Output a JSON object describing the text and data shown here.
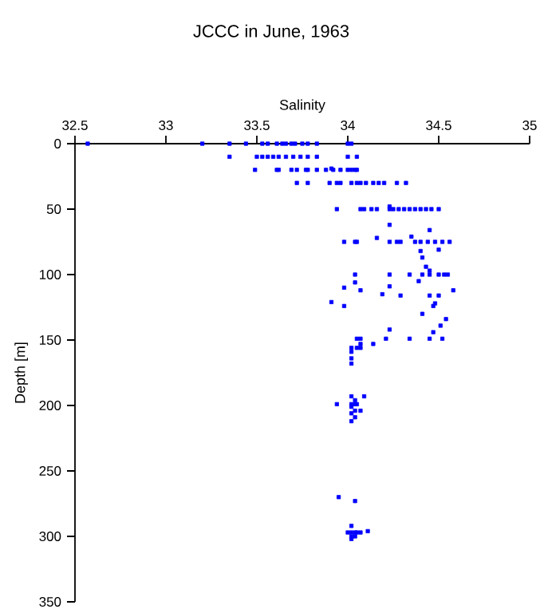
{
  "chart_data": {
    "type": "scatter",
    "title": "JCCC in June, 1963",
    "xlabel": "Salinity",
    "ylabel": "Depth [m]",
    "xlim": [
      32.5,
      35
    ],
    "xticks": [
      32.5,
      33,
      33.5,
      34,
      34.5,
      35
    ],
    "ylim": [
      350,
      0
    ],
    "yticks": [
      0,
      50,
      100,
      150,
      200,
      250,
      300,
      350
    ],
    "color": "#0000ff",
    "marker": "square",
    "x": [
      32.57,
      33.2,
      33.35,
      33.44,
      33.53,
      33.56,
      33.61,
      33.64,
      33.66,
      33.69,
      33.71,
      33.75,
      33.78,
      33.83,
      34.0,
      34.02,
      33.35,
      33.5,
      33.53,
      33.56,
      33.59,
      33.62,
      33.66,
      33.7,
      33.74,
      33.78,
      33.83,
      34.0,
      34.05,
      33.49,
      33.61,
      33.62,
      33.69,
      33.72,
      33.77,
      33.78,
      33.83,
      33.88,
      33.92,
      33.96,
      34.0,
      34.02,
      34.04,
      34.05,
      33.91,
      33.72,
      33.78,
      33.9,
      33.94,
      33.96,
      34.02,
      34.05,
      34.07,
      34.1,
      34.14,
      34.17,
      34.2,
      34.27,
      34.32,
      33.94,
      34.07,
      34.09,
      34.13,
      34.16,
      34.23,
      34.25,
      34.28,
      34.31,
      34.34,
      34.37,
      34.4,
      34.43,
      34.46,
      34.5,
      34.23,
      34.23,
      34.45,
      33.98,
      34.04,
      34.05,
      34.23,
      34.27,
      34.29,
      34.37,
      34.4,
      34.44,
      34.48,
      34.52,
      34.56,
      34.16,
      34.35,
      34.4,
      34.41,
      34.5,
      34.43,
      34.45,
      34.04,
      34.23,
      34.34,
      34.41,
      34.45,
      34.5,
      34.53,
      34.55,
      34.04,
      34.39,
      34.23,
      33.98,
      34.07,
      34.58,
      34.19,
      34.29,
      34.45,
      34.5,
      33.91,
      34.48,
      33.98,
      34.47,
      34.41,
      34.54,
      34.51,
      34.23,
      34.47,
      34.05,
      34.07,
      34.21,
      34.34,
      34.45,
      34.52,
      34.14,
      34.07,
      34.02,
      34.05,
      34.07,
      34.02,
      34.02,
      34.02,
      34.02,
      34.09,
      34.04,
      33.94,
      34.02,
      34.04,
      34.05,
      34.02,
      34.04,
      34.07,
      34.02,
      34.04,
      34.02,
      33.95,
      34.04,
      34.02,
      34.11,
      34.0,
      34.02,
      34.04,
      34.05,
      34.07,
      34.02,
      34.04,
      34.02
    ],
    "values": [
      0,
      0,
      0,
      0,
      0,
      0,
      0,
      0,
      0,
      0,
      0,
      0,
      0,
      0,
      0,
      0,
      10,
      10,
      10,
      10,
      10,
      10,
      10,
      10,
      10,
      10,
      10,
      10,
      10,
      20,
      20,
      20,
      20,
      20,
      20,
      20,
      20,
      20,
      20,
      20,
      20,
      20,
      20,
      20,
      19,
      30,
      30,
      30,
      30,
      30,
      30,
      30,
      30,
      30,
      30,
      30,
      30,
      30,
      30,
      50,
      50,
      50,
      50,
      50,
      50,
      50,
      50,
      50,
      50,
      50,
      50,
      50,
      50,
      50,
      48,
      62,
      66,
      75,
      75,
      75,
      75,
      75,
      75,
      75,
      75,
      75,
      75,
      75,
      75,
      72,
      71,
      82,
      87,
      81,
      94,
      97,
      100,
      100,
      100,
      100,
      100,
      100,
      100,
      100,
      106,
      105,
      109,
      110,
      112,
      112,
      115,
      116,
      116,
      116,
      121,
      122,
      124,
      124,
      130,
      134,
      139,
      142,
      144,
      149,
      149,
      149,
      149,
      149,
      149,
      153,
      153,
      156,
      156,
      156,
      159,
      164,
      168,
      193,
      193,
      196,
      199,
      199,
      199,
      199,
      201,
      204,
      204,
      206,
      209,
      212,
      270,
      273,
      292,
      296,
      297,
      297,
      297,
      297,
      297,
      300,
      300,
      302
    ]
  }
}
